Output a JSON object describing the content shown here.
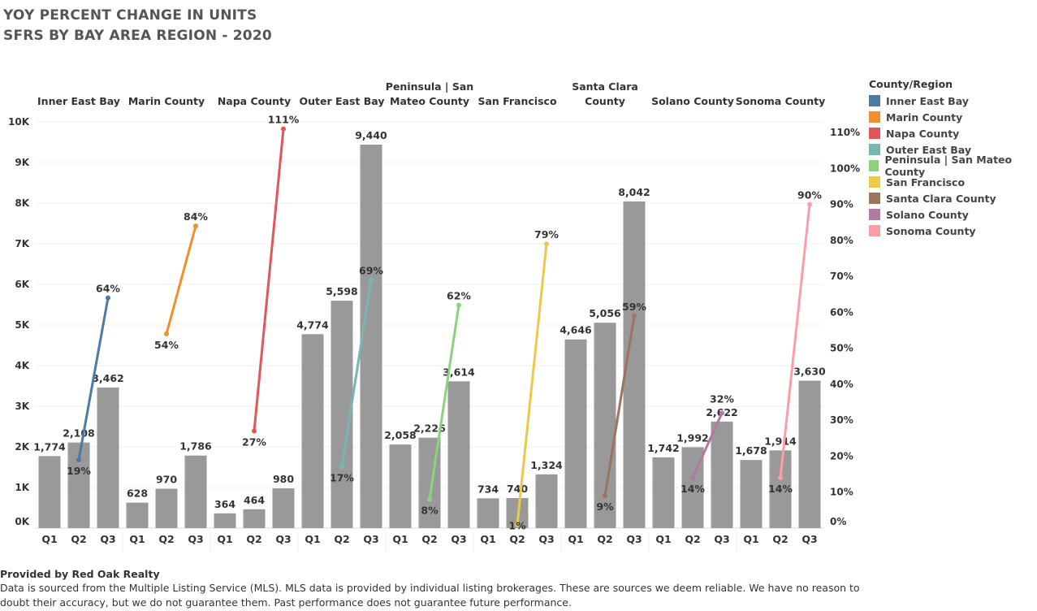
{
  "title_lines": [
    "YOY PERCENT CHANGE IN UNITS",
    "SFRS BY BAY AREA REGION - 2020"
  ],
  "footer": {
    "provider": "Provided by Red Oak Realty",
    "disclaimer_1": "Data is sourced from the Multiple Listing Service (MLS). MLS data is provided by individual listing brokerages. These are sources we deem reliable. We have no reason to",
    "disclaimer_2": "doubt their accuracy, but we do not guarantee them. Past performance does not guarantee future performance."
  },
  "chart_data": {
    "type": "bar+line",
    "categories": [
      "Q1",
      "Q2",
      "Q3"
    ],
    "left_axis": {
      "ylim": [
        0,
        10000
      ],
      "ticks": [
        "0K",
        "1K",
        "2K",
        "3K",
        "4K",
        "5K",
        "6K",
        "7K",
        "8K",
        "9K",
        "10K"
      ]
    },
    "right_axis": {
      "ylim": [
        0,
        110
      ],
      "ticks": [
        "0%",
        "10%",
        "20%",
        "30%",
        "40%",
        "50%",
        "60%",
        "70%",
        "80%",
        "90%",
        "100%",
        "110%"
      ]
    },
    "bar_color": "#999999",
    "grid": true,
    "legend": {
      "title": "County/Region",
      "placement": "right"
    },
    "panels": [
      {
        "name": "Inner East Bay",
        "header": [
          "Inner East Bay"
        ],
        "color": "#4e79a7",
        "units": [
          1774,
          2108,
          3462
        ],
        "unit_labels": [
          "1,774",
          "2,108",
          "3,462"
        ],
        "pct": [
          19,
          64
        ]
      },
      {
        "name": "Marin County",
        "header": [
          "Marin County"
        ],
        "color": "#f28e2b",
        "units": [
          628,
          970,
          1786
        ],
        "unit_labels": [
          "628",
          "970",
          "1,786"
        ],
        "pct": [
          54,
          84
        ]
      },
      {
        "name": "Napa County",
        "header": [
          "Napa County"
        ],
        "color": "#e15759",
        "units": [
          364,
          464,
          980
        ],
        "unit_labels": [
          "364",
          "464",
          "980"
        ],
        "pct": [
          27,
          111
        ]
      },
      {
        "name": "Outer East Bay",
        "header": [
          "Outer East Bay"
        ],
        "color": "#76b7b2",
        "units": [
          4774,
          5598,
          9440
        ],
        "unit_labels": [
          "4,774",
          "5,598",
          "9,440"
        ],
        "pct": [
          17,
          69
        ]
      },
      {
        "name": "Peninsula | San Mateo County",
        "header": [
          "Peninsula | San",
          "Mateo County"
        ],
        "color": "#8cd17d",
        "units": [
          2058,
          2226,
          3614
        ],
        "unit_labels": [
          "2,058",
          "2,226",
          "3,614"
        ],
        "pct": [
          8,
          62
        ]
      },
      {
        "name": "San Francisco",
        "header": [
          "San Francisco"
        ],
        "color": "#edc948",
        "units": [
          734,
          740,
          1324
        ],
        "unit_labels": [
          "734",
          "740",
          "1,324"
        ],
        "pct": [
          1,
          79
        ]
      },
      {
        "name": "Santa Clara County",
        "header": [
          "Santa Clara",
          "County"
        ],
        "color": "#9c755f",
        "units": [
          4646,
          5056,
          8042
        ],
        "unit_labels": [
          "4,646",
          "5,056",
          "8,042"
        ],
        "pct": [
          9,
          59
        ]
      },
      {
        "name": "Solano County",
        "header": [
          "Solano County"
        ],
        "color": "#b07aa1",
        "units": [
          1742,
          1992,
          2622
        ],
        "unit_labels": [
          "1,742",
          "1,992",
          "2,622"
        ],
        "pct": [
          14,
          32
        ]
      },
      {
        "name": "Sonoma County",
        "header": [
          "Sonoma County"
        ],
        "color": "#ff9da7",
        "units": [
          1678,
          1914,
          3630
        ],
        "unit_labels": [
          "1,678",
          "1,914",
          "3,630"
        ],
        "pct": [
          14,
          90
        ]
      }
    ]
  }
}
